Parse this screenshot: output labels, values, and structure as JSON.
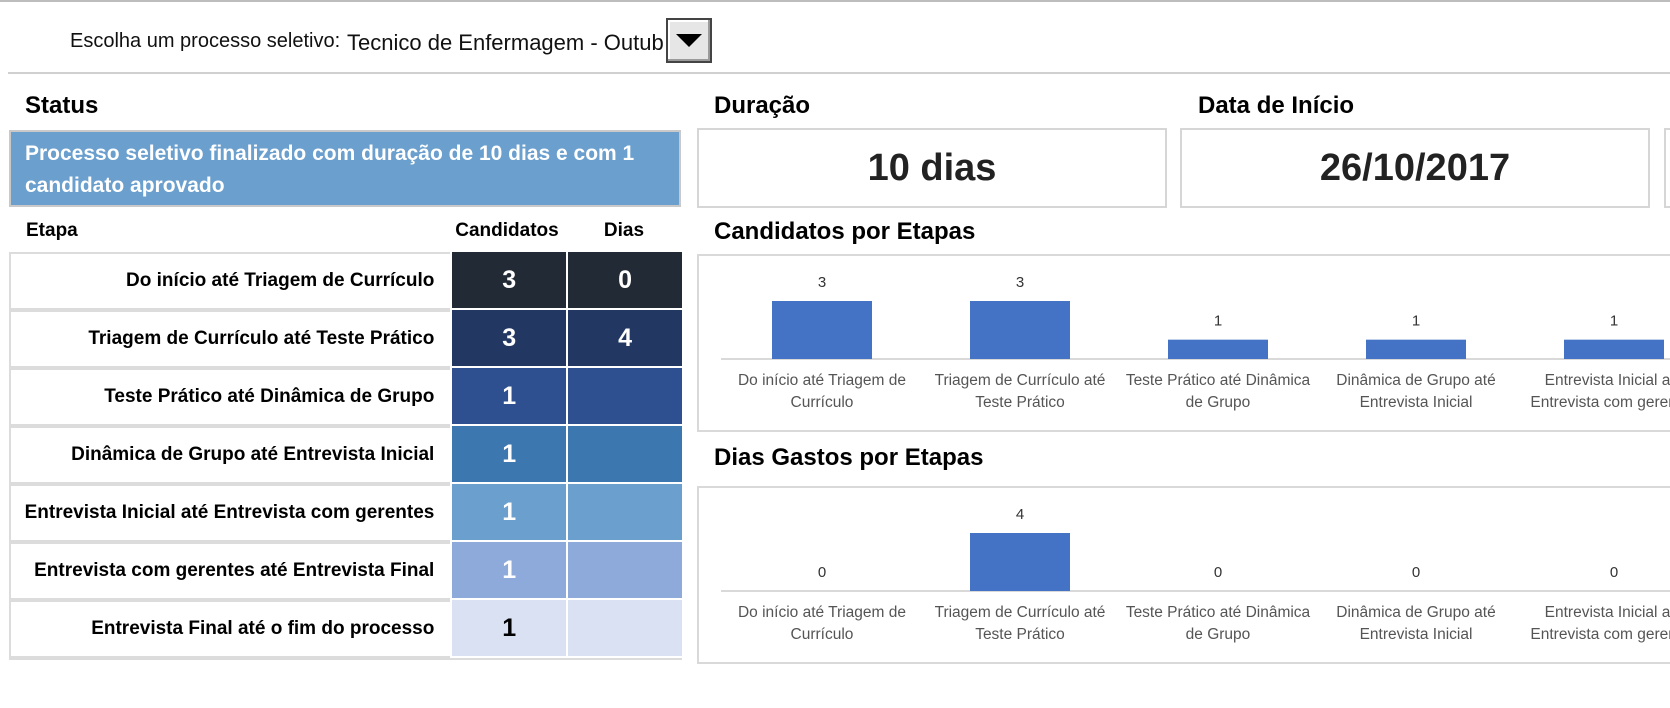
{
  "selector": {
    "label": "Escolha um processo seletivo:",
    "value": "Tecnico de Enfermagem - Outubro"
  },
  "status": {
    "title": "Status",
    "message": "Processo seletivo finalizado com duração de 10 dias e com 1 candidato aprovado"
  },
  "duracao": {
    "title": "Duração",
    "value": "10 dias"
  },
  "data_inicio": {
    "title": "Data de Início",
    "value": "26/10/2017"
  },
  "table": {
    "headers": {
      "etapa": "Etapa",
      "candidatos": "Candidatos",
      "dias": "Dias"
    },
    "rows": [
      {
        "etapa": "Do início até Triagem de Currículo",
        "candidatos": "3",
        "dias": "0"
      },
      {
        "etapa": "Triagem de Currículo até Teste Prático",
        "candidatos": "3",
        "dias": "4"
      },
      {
        "etapa": "Teste Prático até Dinâmica de Grupo",
        "candidatos": "1",
        "dias": ""
      },
      {
        "etapa": "Dinâmica de Grupo até Entrevista Inicial",
        "candidatos": "1",
        "dias": ""
      },
      {
        "etapa": "Entrevista Inicial até Entrevista com gerentes",
        "candidatos": "1",
        "dias": ""
      },
      {
        "etapa": "Entrevista com gerentes até Entrevista Final",
        "candidatos": "1",
        "dias": ""
      },
      {
        "etapa": "Entrevista Final até o fim do processo",
        "candidatos": "1",
        "dias": ""
      }
    ]
  },
  "colors": {
    "row_fills": [
      "#222a36",
      "#223862",
      "#2e5090",
      "#3d77b0",
      "#6a9fce",
      "#8eaadb",
      "#d9e1f2"
    ],
    "row_text": [
      "#ffffff",
      "#ffffff",
      "#ffffff",
      "#ffffff",
      "#ffffff",
      "#ffffff",
      "#000000"
    ],
    "bar": "#4472c4",
    "status_bg": "#6a9fce"
  },
  "chart_data": [
    {
      "type": "bar",
      "title": "Candidatos por Etapas",
      "categories": [
        [
          "Do início até Triagem de",
          "Currículo"
        ],
        [
          "Triagem de Currículo até",
          "Teste Prático"
        ],
        [
          "Teste Prático até Dinâmica",
          "de Grupo"
        ],
        [
          "Dinâmica de Grupo até",
          "Entrevista Inicial"
        ],
        [
          "Entrevista Inicial até",
          "Entrevista com gerentes"
        ]
      ],
      "values": [
        3,
        3,
        1,
        1,
        1
      ],
      "ylim": [
        0,
        3
      ],
      "grid": false,
      "legend": "none"
    },
    {
      "type": "bar",
      "title": "Dias Gastos por Etapas",
      "categories": [
        [
          "Do início até Triagem de",
          "Currículo"
        ],
        [
          "Triagem de Currículo até",
          "Teste Prático"
        ],
        [
          "Teste Prático até Dinâmica",
          "de Grupo"
        ],
        [
          "Dinâmica de Grupo até",
          "Entrevista Inicial"
        ],
        [
          "Entrevista Inicial até",
          "Entrevista com gerentes"
        ]
      ],
      "values": [
        0,
        4,
        0,
        0,
        0
      ],
      "ylim": [
        0,
        4
      ],
      "grid": false,
      "legend": "none"
    }
  ]
}
